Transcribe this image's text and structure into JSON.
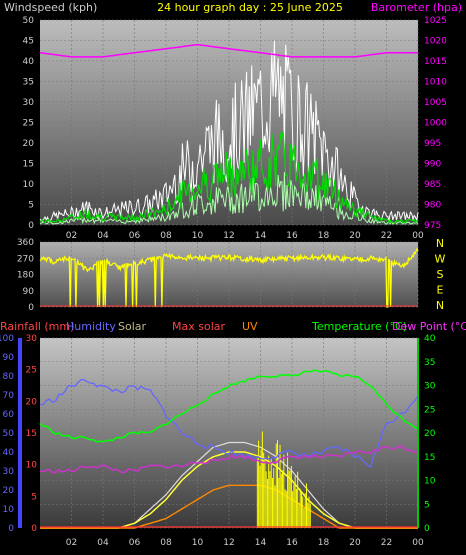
{
  "header": {
    "left_title": "Windspeed (kph)",
    "center_title": "24 hour graph day : 25 June 2025",
    "right_title": "Barometer (hpa)"
  },
  "x_ticks": [
    "02",
    "04",
    "06",
    "08",
    "10",
    "12",
    "14",
    "16",
    "18",
    "20",
    "22",
    "00"
  ],
  "colors": {
    "wind_avg": "#00dd00",
    "wind_gust": "#ffffff",
    "wind_light": "#aaffaa",
    "barometer": "#ff00ff",
    "direction": "#ffff00",
    "rain": "#ff4444",
    "humidity": "#6666ff",
    "solar": "#aaaaaa",
    "max_solar": "#ff2222",
    "uv": "#ff8800",
    "temperature": "#00ff00",
    "dew_point": "#cc33cc",
    "axis_text": "#cccccc"
  },
  "legend": {
    "rainfall": "Rainfall (mm)",
    "humidity": "Humidity",
    "solar": "Solar",
    "max_solar": "Max solar",
    "uv": "UV",
    "temperature": "Temperature (°C)",
    "dew_point": "Dew Point (°C)"
  },
  "direction_labels": [
    "N",
    "W",
    "S",
    "E",
    "N"
  ],
  "chart_data": [
    {
      "type": "line",
      "title": "24 hour graph day : 25 June 2025",
      "x_range_hours": [
        0,
        24
      ],
      "y_left": {
        "label": "Windspeed (kph)",
        "ticks": [
          0,
          5,
          10,
          15,
          20,
          25,
          30,
          35,
          40,
          45,
          50
        ],
        "ylim": [
          0,
          50
        ]
      },
      "y_right": {
        "label": "Barometer (hpa)",
        "ticks": [
          975,
          980,
          985,
          990,
          995,
          1000,
          1005,
          1010,
          1015,
          1020,
          1025
        ],
        "ylim": [
          975,
          1025
        ]
      },
      "series": [
        {
          "name": "gust",
          "axis": "left",
          "x": [
            0,
            1,
            2,
            3,
            4,
            5,
            6,
            7,
            8,
            9,
            10,
            11,
            12,
            13,
            14,
            15,
            16,
            17,
            18,
            19,
            20,
            21,
            22,
            23,
            24
          ],
          "values": [
            2,
            3,
            4,
            6,
            4,
            5,
            6,
            7,
            10,
            18,
            22,
            28,
            30,
            34,
            40,
            44,
            38,
            32,
            26,
            16,
            8,
            4,
            3,
            3,
            3
          ]
        },
        {
          "name": "average",
          "axis": "left",
          "x": [
            0,
            1,
            2,
            3,
            4,
            5,
            6,
            7,
            8,
            9,
            10,
            11,
            12,
            13,
            14,
            15,
            16,
            17,
            18,
            19,
            20,
            21,
            22,
            23,
            24
          ],
          "values": [
            1,
            1,
            2,
            3,
            2,
            2,
            2,
            3,
            4,
            8,
            10,
            12,
            13,
            14,
            15,
            17,
            16,
            14,
            11,
            7,
            4,
            2,
            1,
            1,
            1
          ]
        },
        {
          "name": "barometer",
          "axis": "right",
          "x": [
            0,
            2,
            4,
            6,
            8,
            10,
            12,
            14,
            16,
            18,
            20,
            22,
            24
          ],
          "values": [
            1017,
            1016,
            1016,
            1017,
            1018,
            1019,
            1018,
            1017,
            1016,
            1016,
            1016,
            1017,
            1017
          ]
        }
      ]
    },
    {
      "type": "scatter",
      "title": "",
      "y_left": {
        "ticks": [
          0,
          90,
          180,
          270,
          360
        ],
        "ylim": [
          0,
          360
        ]
      },
      "y_right_labels": [
        "N",
        "W",
        "S",
        "E",
        "N"
      ],
      "series": [
        {
          "name": "wind direction",
          "x": [
            0,
            1,
            2,
            3,
            4,
            5,
            6,
            7,
            8,
            10,
            12,
            14,
            16,
            18,
            20,
            21,
            22,
            23,
            24
          ],
          "values": [
            270,
            250,
            280,
            200,
            260,
            220,
            240,
            260,
            280,
            270,
            275,
            260,
            270,
            275,
            265,
            270,
            260,
            220,
            320
          ]
        }
      ]
    },
    {
      "type": "line",
      "title": "",
      "y_left_outer": {
        "label": "Rainfall (mm)",
        "ticks": [
          0,
          5,
          10,
          15,
          20,
          25,
          30
        ],
        "ylim": [
          0,
          30
        ]
      },
      "y_left_inner": {
        "label": "Humidity",
        "ticks": [
          0,
          10,
          20,
          30,
          40,
          50,
          60,
          70,
          80,
          90,
          100
        ],
        "ylim": [
          0,
          100
        ]
      },
      "y_right": {
        "label": "Temperature (°C)",
        "ticks": [
          0,
          5,
          10,
          15,
          20,
          25,
          30,
          35,
          40
        ],
        "ylim": [
          0,
          40
        ]
      },
      "series": [
        {
          "name": "Humidity",
          "axis": "inner",
          "x": [
            0,
            1,
            2,
            3,
            4,
            5,
            6,
            7,
            8,
            9,
            10,
            11,
            12,
            13,
            14,
            15,
            16,
            17,
            18,
            19,
            20,
            21,
            22,
            23,
            24
          ],
          "values": [
            65,
            68,
            75,
            78,
            74,
            72,
            74,
            72,
            60,
            50,
            45,
            42,
            40,
            38,
            37,
            38,
            40,
            38,
            40,
            42,
            38,
            33,
            55,
            60,
            70
          ]
        },
        {
          "name": "Temperature (°C)",
          "axis": "right",
          "x": [
            0,
            1,
            2,
            3,
            4,
            5,
            6,
            7,
            8,
            9,
            10,
            11,
            12,
            13,
            14,
            15,
            16,
            17,
            18,
            19,
            20,
            21,
            22,
            23,
            24
          ],
          "values": [
            22,
            20,
            19,
            19,
            18,
            19,
            20,
            20,
            22,
            24,
            26,
            28,
            30,
            31,
            32,
            32,
            32,
            33,
            33,
            32,
            32,
            30,
            26,
            23,
            21
          ]
        },
        {
          "name": "Dew Point (°C)",
          "axis": "right",
          "x": [
            0,
            1,
            2,
            3,
            4,
            5,
            6,
            7,
            8,
            9,
            10,
            11,
            12,
            13,
            14,
            15,
            16,
            17,
            18,
            19,
            20,
            21,
            22,
            23,
            24
          ],
          "values": [
            12,
            12,
            12,
            13,
            13,
            12,
            12,
            13,
            13,
            13,
            14,
            14,
            15,
            15,
            14,
            14,
            15,
            15,
            15,
            15,
            16,
            16,
            17,
            17,
            16
          ]
        },
        {
          "name": "Solar",
          "axis": "right",
          "x": [
            0,
            4,
            5,
            6,
            7,
            8,
            9,
            10,
            11,
            12,
            13,
            14,
            15,
            16,
            17,
            18,
            19,
            20,
            24
          ],
          "values": [
            0,
            0,
            0,
            1,
            3,
            6,
            10,
            13,
            15,
            16,
            16,
            15,
            13,
            10,
            6,
            3,
            1,
            0,
            0
          ]
        },
        {
          "name": "Max solar",
          "axis": "right",
          "x": [
            0,
            4,
            5,
            6,
            7,
            8,
            9,
            10,
            11,
            12,
            13,
            14,
            15,
            16,
            17,
            18,
            19,
            20,
            24
          ],
          "values": [
            0,
            0,
            0,
            1,
            4,
            7,
            11,
            14,
            17,
            18,
            18,
            17,
            15,
            12,
            8,
            4,
            1,
            0,
            0
          ]
        },
        {
          "name": "UV",
          "axis": "right",
          "x": [
            0,
            6,
            7,
            8,
            9,
            10,
            11,
            12,
            13,
            14,
            15,
            16,
            17,
            18,
            19,
            24
          ],
          "values": [
            0,
            0,
            1,
            2,
            4,
            6,
            8,
            9,
            9,
            9,
            8,
            6,
            4,
            2,
            0,
            0
          ]
        }
      ]
    }
  ]
}
